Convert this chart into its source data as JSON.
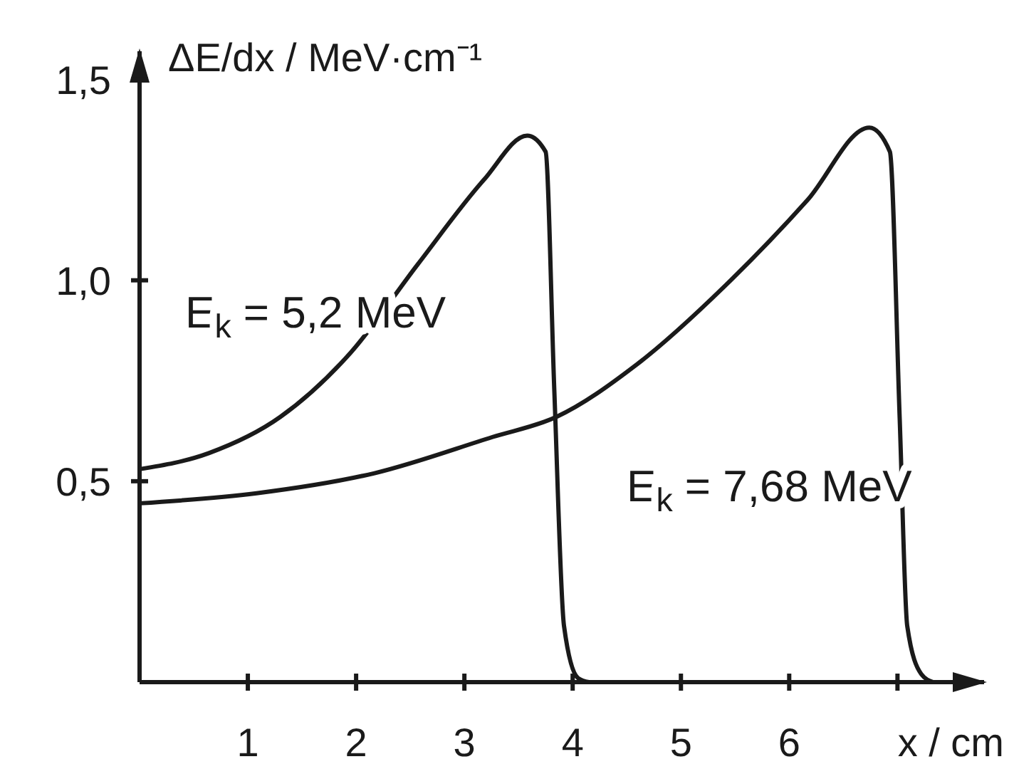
{
  "chart_data": {
    "type": "line",
    "xlabel": "x / cm",
    "ylabel": "ΔE/dx / MeV·cm⁻¹",
    "xlim": [
      0,
      7.8
    ],
    "ylim": [
      0,
      1.57
    ],
    "xticks": [
      1,
      2,
      3,
      4,
      5,
      6,
      {
        "value": 7,
        "label": null
      }
    ],
    "yticks": [
      {
        "value": 0.5,
        "label": "0,5"
      },
      {
        "value": 1,
        "label": "1,0"
      },
      {
        "value": 1.5,
        "label": "1,5"
      }
    ],
    "grid": false,
    "legend": false,
    "marker": "none",
    "line_style": "solid",
    "series": [
      {
        "name": "E$_{k}$ = 5,2 MeV",
        "color": "#1a1a1a",
        "x": [
          0,
          0.64,
          1.3,
          1.95,
          2.57,
          3.18,
          3.58,
          3.75,
          3.83,
          3.92,
          4.05,
          4.15
        ],
        "values": [
          0.53,
          0.57,
          0.66,
          0.82,
          1.04,
          1.25,
          1.36,
          1.32,
          0.73,
          0.14,
          0.01,
          0
        ]
      },
      {
        "name": "E$_{k}$ = 7,68 MeV",
        "color": "#1a1a1a",
        "x": [
          0,
          1.08,
          2.17,
          3.26,
          3.85,
          4.59,
          5.46,
          6.17,
          6.74,
          6.93,
          7.02,
          7.09,
          7.22,
          7.33
        ],
        "values": [
          0.445,
          0.47,
          0.52,
          0.61,
          0.66,
          0.79,
          1.0,
          1.2,
          1.38,
          1.32,
          0.66,
          0.14,
          0.02,
          0
        ]
      }
    ]
  }
}
